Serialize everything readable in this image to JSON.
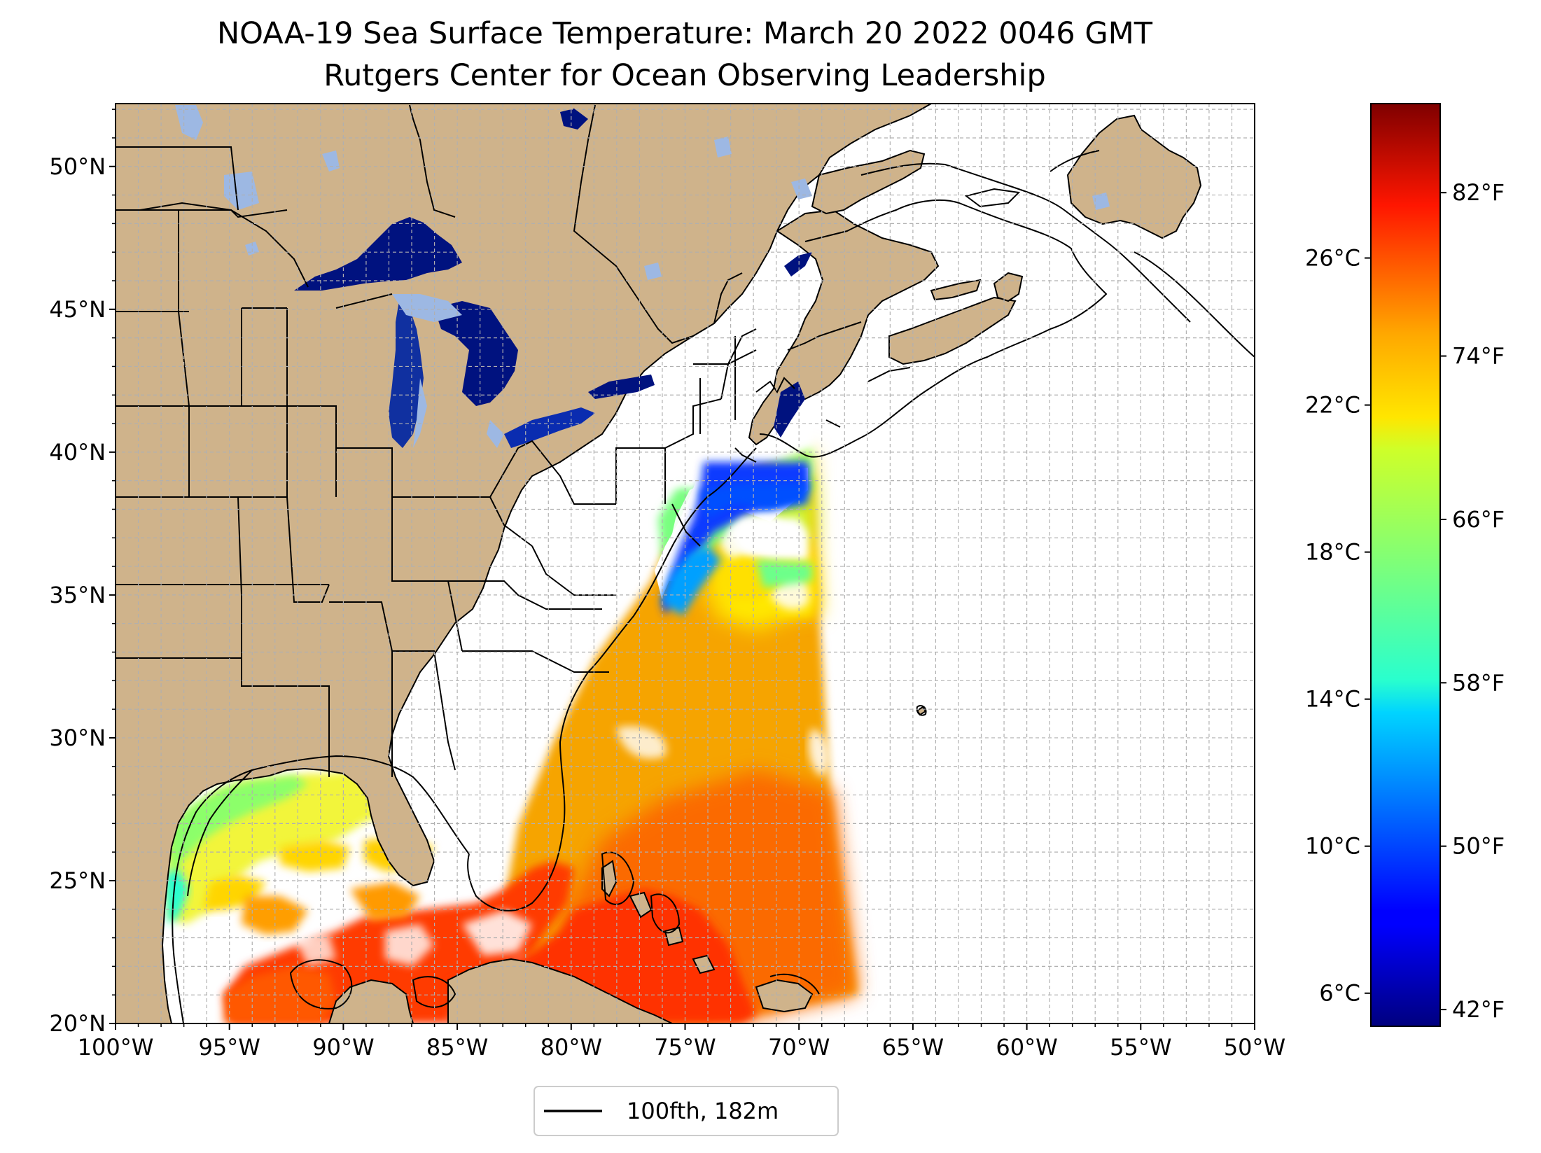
{
  "title": {
    "line1": "NOAA-19 Sea Surface Temperature: March 20 2022 0046 GMT",
    "line2": "Rutgers Center for Ocean Observing Leadership"
  },
  "map": {
    "lon_range": [
      -100,
      -50
    ],
    "lat_range": [
      20,
      52.2
    ],
    "x_ticks": [
      "100°W",
      "95°W",
      "90°W",
      "85°W",
      "80°W",
      "75°W",
      "70°W",
      "65°W",
      "60°W",
      "55°W",
      "50°W"
    ],
    "y_ticks": [
      "20°N",
      "25°N",
      "30°N",
      "35°N",
      "40°N",
      "45°N",
      "50°N"
    ],
    "gridlines": true,
    "colors": {
      "land": "#cfb38b",
      "lakes": "#9db8e3",
      "ocean_nodata": "#ffffff",
      "coastline": "#000000",
      "grid": "#b0b0b0"
    }
  },
  "colorbar": {
    "colormap": "jet",
    "celsius_labels": [
      "26°C",
      "22°C",
      "18°C",
      "14°C",
      "10°C",
      "6°C"
    ],
    "fahrenheit_labels": [
      "82°F",
      "74°F",
      "66°F",
      "58°F",
      "50°F",
      "42°F"
    ]
  },
  "legend": {
    "label": "100fth, 182m"
  }
}
